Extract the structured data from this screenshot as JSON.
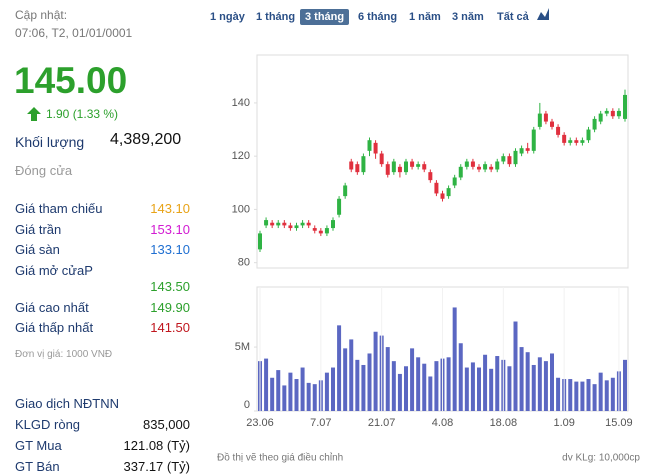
{
  "panel": {
    "update_label": "Cập nhật:",
    "update_time": "07:06, T2, 01/01/0001",
    "price": "145.00",
    "change": "1.90 (1.33 %)",
    "volume_label": "Khối lượng",
    "volume": "4,389,200",
    "close_label": "Đóng cửa",
    "rows": [
      {
        "label": "Giá tham chiếu",
        "value": "143.10",
        "color": "#e8a317"
      },
      {
        "label": "Giá trần",
        "value": "153.10",
        "color": "#d21bd2"
      },
      {
        "label": "Giá sàn",
        "value": "133.10",
        "color": "#1f6fd1"
      },
      {
        "label": "Giá mở cửaP",
        "value": "143.50",
        "color": "#2ca02c"
      },
      {
        "label": "Giá cao nhất",
        "value": "149.90",
        "color": "#2ca02c"
      },
      {
        "label": "Giá thấp nhất",
        "value": "141.50",
        "color": "#c0161e"
      }
    ],
    "unit": "Đơn vị giá: 1000 VNĐ",
    "foreign_title": "Giao dịch NĐTNN",
    "foreign_rows": [
      {
        "label": "KLGD ròng",
        "value": "835,000"
      },
      {
        "label": "GT Mua",
        "value": "121.08 (Tỷ)"
      },
      {
        "label": "GT Bán",
        "value": "337.17 (Tỷ)"
      }
    ]
  },
  "tabs": {
    "items": [
      "1 ngày",
      "1 tháng",
      "3 tháng",
      "6 tháng",
      "1 năm",
      "3 năm",
      "Tất cả"
    ],
    "active": 2
  },
  "footer": {
    "left": "Đồ thị vẽ theo giá điều chỉnh",
    "right": "dv KLg: 10,000cp"
  },
  "chart_data": [
    {
      "type": "candlestick",
      "up_color": "#2fb344",
      "down_color": "#e0303e",
      "open": [
        85,
        94,
        95,
        94,
        95,
        94,
        93,
        94,
        95,
        93,
        92,
        91,
        93,
        98,
        105,
        118,
        117,
        114,
        122,
        125,
        121,
        117,
        114,
        116,
        114,
        118,
        116,
        117,
        114,
        110,
        106,
        105,
        109,
        112,
        116,
        118,
        116,
        115,
        116,
        115,
        118,
        120,
        117,
        121,
        123,
        122,
        131,
        136,
        133,
        131,
        128,
        125,
        126,
        125,
        126,
        130,
        133,
        136,
        137,
        135,
        134
      ],
      "close": [
        91,
        96,
        94,
        95,
        94,
        93,
        94,
        95,
        94,
        92,
        91,
        93,
        96,
        104,
        109,
        115,
        114,
        120,
        126,
        121,
        117,
        113,
        118,
        114,
        118,
        116,
        117,
        115,
        111,
        106,
        104,
        108,
        112,
        116,
        118,
        116,
        115,
        117,
        115,
        118,
        120,
        117,
        122,
        123,
        122,
        130,
        136,
        133,
        131,
        128,
        125,
        126,
        125,
        126,
        130,
        134,
        136,
        137,
        135,
        137,
        143
      ],
      "high": [
        92,
        97,
        96,
        96,
        96,
        95,
        95,
        96,
        96,
        94,
        93,
        94,
        97,
        105,
        110,
        119,
        118,
        121,
        127,
        126,
        122,
        118,
        119,
        117,
        119,
        119,
        118,
        118,
        115,
        111,
        107,
        109,
        113,
        117,
        119,
        119,
        117,
        118,
        117,
        119,
        121,
        121,
        123,
        124,
        125,
        131,
        140,
        137,
        134,
        132,
        129,
        127,
        127,
        127,
        131,
        135,
        137,
        138,
        138,
        138,
        145
      ],
      "low": [
        84,
        93,
        93,
        93,
        93,
        92,
        92,
        93,
        93,
        91,
        90,
        90,
        92,
        97,
        104,
        114,
        113,
        113,
        120,
        119,
        116,
        112,
        113,
        112,
        113,
        115,
        115,
        114,
        110,
        105,
        103,
        104,
        108,
        111,
        115,
        115,
        114,
        114,
        114,
        114,
        117,
        116,
        116,
        120,
        121,
        121,
        130,
        132,
        130,
        127,
        124,
        124,
        124,
        124,
        125,
        129,
        132,
        135,
        134,
        134,
        133
      ],
      "ylim": [
        78,
        158
      ],
      "yticks": [
        80,
        100,
        120,
        140
      ]
    },
    {
      "type": "bar",
      "color": "#5b67c2",
      "categories": [
        "23.06",
        null,
        null,
        null,
        null,
        null,
        null,
        null,
        null,
        null,
        "7.07",
        null,
        null,
        null,
        null,
        null,
        null,
        null,
        null,
        null,
        "21.07",
        null,
        null,
        null,
        null,
        null,
        null,
        null,
        null,
        null,
        "4.08",
        null,
        null,
        null,
        null,
        null,
        null,
        null,
        null,
        null,
        "18.08",
        null,
        null,
        null,
        null,
        null,
        null,
        null,
        null,
        null,
        "1.09",
        null,
        null,
        null,
        null,
        null,
        null,
        null,
        null,
        "15.09",
        null
      ],
      "values": [
        3900000,
        4100000,
        2600000,
        3200000,
        2000000,
        3000000,
        2500000,
        3400000,
        2200000,
        2100000,
        2400000,
        3000000,
        3400000,
        6700000,
        4900000,
        5600000,
        4000000,
        3600000,
        4500000,
        6200000,
        5900000,
        5000000,
        3900000,
        2900000,
        3500000,
        4900000,
        4200000,
        3700000,
        2700000,
        3900000,
        4100000,
        4200000,
        8100000,
        5300000,
        3400000,
        3800000,
        3400000,
        4400000,
        3300000,
        4300000,
        4000000,
        3500000,
        7000000,
        5000000,
        4600000,
        3600000,
        4200000,
        3900000,
        4500000,
        2600000,
        2500000,
        2500000,
        2300000,
        2300000,
        2500000,
        2100000,
        3000000,
        2400000,
        2600000,
        3100000,
        4000000
      ],
      "ylim": [
        0,
        9700000
      ],
      "yticks": [
        0,
        {
          "value": 5000000,
          "label": "5M"
        }
      ]
    }
  ]
}
